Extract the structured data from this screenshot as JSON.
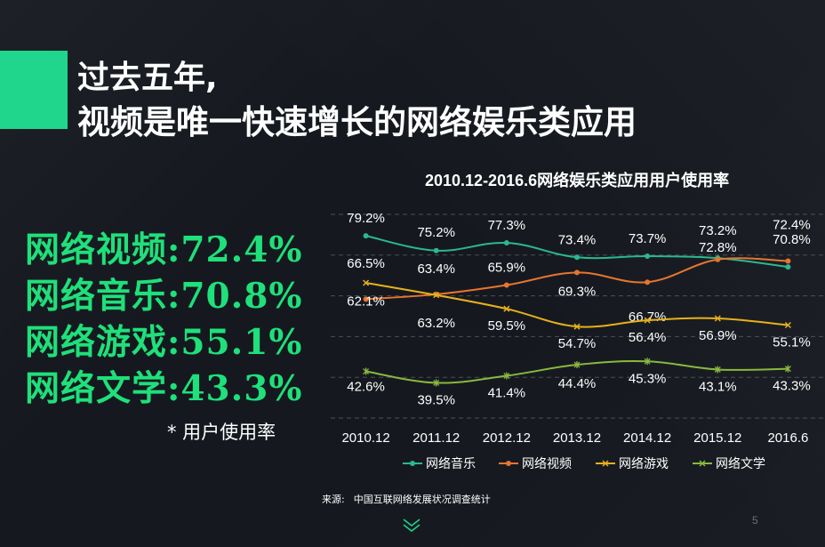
{
  "title": {
    "line1": "过去五年,",
    "line2": "视频是唯一快速增长的网络娱乐类应用"
  },
  "stats": [
    {
      "label": "网络视频:",
      "value": "72.4%"
    },
    {
      "label": "网络音乐:",
      "value": "70.8%"
    },
    {
      "label": "网络游戏:",
      "value": "55.1%"
    },
    {
      "label": "网络文学:",
      "value": "43.3%"
    }
  ],
  "note": "* 用户使用率",
  "source": {
    "label": "来源:",
    "text": "中国互联网络发展状况调查统计"
  },
  "page_number": "5",
  "colors": {
    "accent": "#1fd68c",
    "stats_text": "#1fe07a",
    "music": "#2bb88f",
    "video": "#e8742f",
    "game": "#e8b11a",
    "literature": "#8ab83e"
  },
  "chart_data": {
    "type": "line",
    "title": "2010.12-2016.6网络娱乐类应用用户使用率",
    "categories": [
      "2010.12",
      "2011.12",
      "2012.12",
      "2013.12",
      "2014.12",
      "2015.12",
      "2016.6"
    ],
    "ylim": [
      30,
      85
    ],
    "grid": true,
    "legend": "bottom",
    "series": [
      {
        "name": "网络音乐",
        "values": [
          79.2,
          75.2,
          77.3,
          73.4,
          73.7,
          73.2,
          70.8
        ],
        "labels": [
          "79.2%",
          "75.2%",
          "77.3%",
          "73.4%",
          "73.7%",
          "73.2%",
          "70.8%"
        ]
      },
      {
        "name": "网络视频",
        "values": [
          62.1,
          63.4,
          65.9,
          69.3,
          66.7,
          72.8,
          72.4
        ],
        "labels": [
          "62.1%",
          "63.4%",
          "65.9%",
          "69.3%",
          "66.7%",
          "72.8%",
          "72.4%"
        ]
      },
      {
        "name": "网络游戏",
        "values": [
          66.5,
          63.2,
          59.5,
          54.7,
          56.4,
          56.9,
          55.1
        ],
        "labels": [
          "66.5%",
          "63.2%",
          "59.5%",
          "54.7%",
          "56.4%",
          "56.9%",
          "55.1%"
        ]
      },
      {
        "name": "网络文学",
        "values": [
          42.6,
          39.5,
          41.4,
          44.4,
          45.3,
          43.1,
          43.3
        ],
        "labels": [
          "42.6%",
          "39.5%",
          "41.4%",
          "44.4%",
          "45.3%",
          "43.1%",
          "43.3%"
        ]
      }
    ]
  }
}
